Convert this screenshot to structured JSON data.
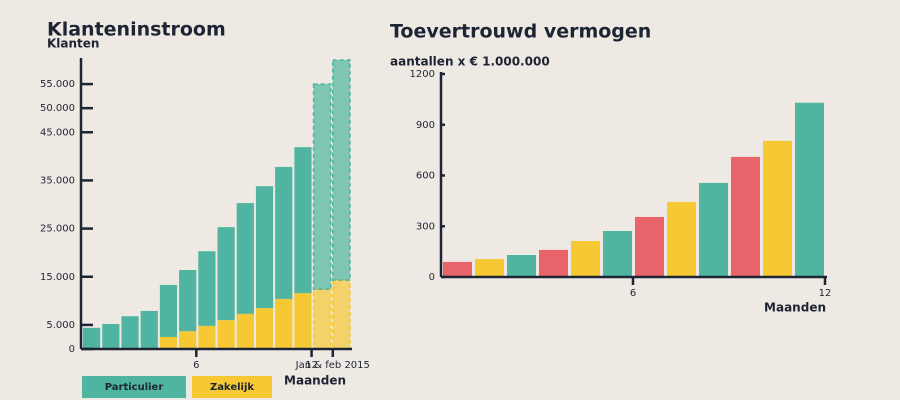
{
  "chart_data": [
    {
      "type": "bar",
      "stacked": true,
      "title": "Klanteninstroom",
      "y_label": "Klanten",
      "x_label": "Maanden",
      "categories": [
        null,
        null,
        null,
        null,
        null,
        "6",
        null,
        null,
        null,
        null,
        null,
        "12",
        "Jan & feb 2015",
        null
      ],
      "projected": [
        false,
        false,
        false,
        false,
        false,
        false,
        false,
        false,
        false,
        false,
        false,
        false,
        true,
        true
      ],
      "series": [
        {
          "name": "Particulier",
          "color": "#4fb5a0",
          "values": [
            4400,
            5200,
            6800,
            7900,
            10800,
            12700,
            15500,
            19300,
            23000,
            25300,
            27400,
            30300,
            42600,
            45700
          ]
        },
        {
          "name": "Zakelijk",
          "color": "#f5c834",
          "values": [
            0,
            0,
            0,
            0,
            2500,
            3700,
            4800,
            6000,
            7300,
            8500,
            10400,
            11600,
            12400,
            14300
          ]
        }
      ],
      "ylim": [
        0,
        60000
      ],
      "yticks": [
        0,
        {
          "value": 5000,
          "label": "5.000"
        },
        {
          "value": 15000,
          "label": "15.000"
        },
        {
          "value": 25000,
          "label": "25.000"
        },
        {
          "value": 35000,
          "label": "35.000"
        },
        {
          "value": 45000,
          "label": "45.000"
        },
        {
          "value": 50000,
          "label": "50.000"
        },
        {
          "value": 55000,
          "label": "55.000"
        }
      ],
      "legend": "bottom-left",
      "grid": false
    },
    {
      "type": "bar",
      "stacked": false,
      "title": "Toevertrouwd vermogen",
      "subtitle": "aantallen x € 1.000.000",
      "x_label": "Maanden",
      "categories": [
        null,
        null,
        null,
        null,
        null,
        "6",
        null,
        null,
        null,
        null,
        null,
        "12"
      ],
      "values": [
        89,
        106,
        130,
        160,
        213,
        272,
        355,
        444,
        556,
        710,
        805,
        1030
      ],
      "colors": [
        "#e8636a",
        "#f5c834",
        "#4fb5a0",
        "#e8636a",
        "#f5c834",
        "#4fb5a0",
        "#e8636a",
        "#f5c834",
        "#4fb5a0",
        "#e8636a",
        "#f5c834",
        "#4fb5a0"
      ],
      "ylim": [
        0,
        1200
      ],
      "yticks": [
        0,
        300,
        600,
        900,
        1200
      ],
      "grid": false
    }
  ]
}
